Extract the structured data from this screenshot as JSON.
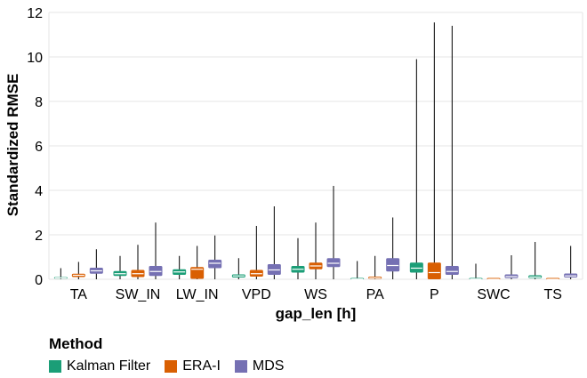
{
  "chart_data": {
    "type": "box",
    "xlabel": "gap_len [h]",
    "ylabel": "Standardized RMSE",
    "ylim": [
      0,
      12
    ],
    "yticks": [
      0,
      2,
      4,
      6,
      8,
      10,
      12
    ],
    "grid": "horizontal",
    "categories": [
      "TA",
      "SW_IN",
      "LW_IN",
      "VPD",
      "WS",
      "PA",
      "P",
      "SWC",
      "TS"
    ],
    "legend": {
      "title": "Method",
      "placement": "bottom-left"
    },
    "series": [
      {
        "name": "Kalman Filter",
        "color": "#1b9e77",
        "boxes": [
          {
            "min": 0.0,
            "q1": 0.03,
            "median": 0.06,
            "q3": 0.1,
            "max": 0.5
          },
          {
            "min": 0.0,
            "q1": 0.15,
            "median": 0.25,
            "q3": 0.37,
            "max": 1.05
          },
          {
            "min": 0.0,
            "q1": 0.2,
            "median": 0.33,
            "q3": 0.45,
            "max": 1.05
          },
          {
            "min": 0.0,
            "q1": 0.08,
            "median": 0.15,
            "q3": 0.22,
            "max": 0.95
          },
          {
            "min": 0.0,
            "q1": 0.3,
            "median": 0.45,
            "q3": 0.6,
            "max": 1.85
          },
          {
            "min": 0.0,
            "q1": 0.0,
            "median": 0.01,
            "q3": 0.03,
            "max": 0.82
          },
          {
            "min": 0.0,
            "q1": 0.3,
            "median": 0.5,
            "q3": 0.75,
            "max": 9.9
          },
          {
            "min": 0.0,
            "q1": 0.0,
            "median": 0.01,
            "q3": 0.03,
            "max": 0.7
          },
          {
            "min": 0.0,
            "q1": 0.05,
            "median": 0.1,
            "q3": 0.18,
            "max": 1.68
          }
        ]
      },
      {
        "name": "ERA-I",
        "color": "#d95f02",
        "boxes": [
          {
            "min": 0.0,
            "q1": 0.1,
            "median": 0.18,
            "q3": 0.25,
            "max": 0.78
          },
          {
            "min": 0.0,
            "q1": 0.1,
            "median": 0.25,
            "q3": 0.42,
            "max": 1.55
          },
          {
            "min": 0.0,
            "q1": 0.02,
            "median": 0.45,
            "q3": 0.55,
            "max": 1.5
          },
          {
            "min": 0.0,
            "q1": 0.12,
            "median": 0.25,
            "q3": 0.42,
            "max": 2.4
          },
          {
            "min": 0.0,
            "q1": 0.45,
            "median": 0.6,
            "q3": 0.75,
            "max": 2.55
          },
          {
            "min": 0.0,
            "q1": 0.02,
            "median": 0.06,
            "q3": 0.12,
            "max": 1.05
          },
          {
            "min": 0.0,
            "q1": 0.0,
            "median": 0.3,
            "q3": 0.75,
            "max": 11.55
          },
          {
            "min": 0.0,
            "q1": 0.0,
            "median": 0.0,
            "q3": 0.0,
            "max": 0.0
          },
          {
            "min": 0.0,
            "q1": 0.0,
            "median": 0.0,
            "q3": 0.0,
            "max": 0.0
          }
        ]
      },
      {
        "name": "MDS",
        "color": "#7570b3",
        "boxes": [
          {
            "min": 0.0,
            "q1": 0.25,
            "median": 0.38,
            "q3": 0.52,
            "max": 1.35
          },
          {
            "min": 0.0,
            "q1": 0.15,
            "median": 0.35,
            "q3": 0.6,
            "max": 2.55
          },
          {
            "min": 0.0,
            "q1": 0.5,
            "median": 0.72,
            "q3": 0.88,
            "max": 1.97
          },
          {
            "min": 0.0,
            "q1": 0.2,
            "median": 0.42,
            "q3": 0.68,
            "max": 3.28
          },
          {
            "min": 0.0,
            "q1": 0.55,
            "median": 0.72,
            "q3": 0.95,
            "max": 4.2
          },
          {
            "min": 0.0,
            "q1": 0.35,
            "median": 0.62,
            "q3": 0.95,
            "max": 2.78
          },
          {
            "min": 0.0,
            "q1": 0.2,
            "median": 0.35,
            "q3": 0.6,
            "max": 11.4
          },
          {
            "min": 0.0,
            "q1": 0.05,
            "median": 0.12,
            "q3": 0.22,
            "max": 1.08
          },
          {
            "min": 0.0,
            "q1": 0.08,
            "median": 0.15,
            "q3": 0.26,
            "max": 1.5
          }
        ]
      }
    ]
  }
}
